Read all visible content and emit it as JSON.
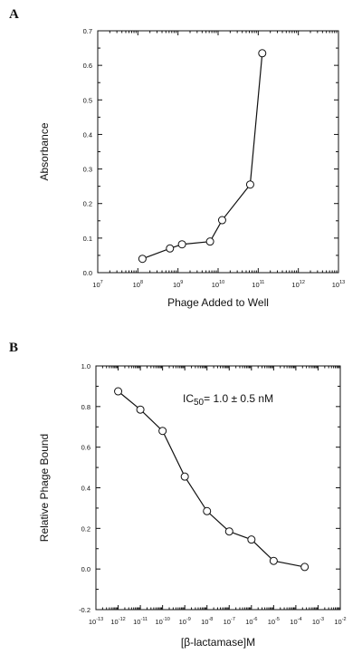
{
  "chart_data": [
    {
      "panel_label": "A",
      "type": "line",
      "xscale": "log",
      "xlabel": "Phage Added to Well",
      "ylabel": "Absorbance",
      "xlim": [
        10000000.0,
        10000000000000.0
      ],
      "ylim": [
        0,
        0.7
      ],
      "x_ticks": [
        {
          "base": "10",
          "exp": "7",
          "v": 7
        },
        {
          "base": "10",
          "exp": "8",
          "v": 8
        },
        {
          "base": "10",
          "exp": "9",
          "v": 9
        },
        {
          "base": "10",
          "exp": "10",
          "v": 10
        },
        {
          "base": "10",
          "exp": "11",
          "v": 11
        },
        {
          "base": "10",
          "exp": "12",
          "v": 12
        },
        {
          "base": "10",
          "exp": "13",
          "v": 13
        }
      ],
      "y_ticks": [
        "0.0",
        "0.1",
        "0.2",
        "0.3",
        "0.4",
        "0.5",
        "0.6",
        "0.7"
      ],
      "series": [
        {
          "x": [
            130000000.0,
            630000000.0,
            1260000000.0,
            6300000000.0,
            12600000000.0,
            63000000000.0,
            126000000000.0
          ],
          "y": [
            0.04,
            0.07,
            0.082,
            0.09,
            0.152,
            0.255,
            0.635
          ]
        }
      ]
    },
    {
      "panel_label": "B",
      "type": "line",
      "xscale": "log",
      "xlabel": "[β-lactamase]M",
      "ylabel": "Relative Phage Bound",
      "xlim": [
        1e-13,
        0.01
      ],
      "ylim": [
        -0.2,
        1.0
      ],
      "x_ticks": [
        {
          "base": "10",
          "exp": "-13",
          "v": -13
        },
        {
          "base": "10",
          "exp": "-12",
          "v": -12
        },
        {
          "base": "10",
          "exp": "-11",
          "v": -11
        },
        {
          "base": "10",
          "exp": "-10",
          "v": -10
        },
        {
          "base": "10",
          "exp": "-9",
          "v": -9
        },
        {
          "base": "10",
          "exp": "-8",
          "v": -8
        },
        {
          "base": "10",
          "exp": "-7",
          "v": -7
        },
        {
          "base": "10",
          "exp": "-6",
          "v": -6
        },
        {
          "base": "10",
          "exp": "-5",
          "v": -5
        },
        {
          "base": "10",
          "exp": "-4",
          "v": -4
        },
        {
          "base": "10",
          "exp": "-3",
          "v": -3
        },
        {
          "base": "10",
          "exp": "-2",
          "v": -2
        }
      ],
      "y_ticks": [
        "-0.2",
        "0.0",
        "0.2",
        "0.4",
        "0.6",
        "0.8",
        "1.0"
      ],
      "annotation": {
        "prefix": "IC",
        "subscript": "50",
        "suffix": "= 1.0 ± 0.5 nM"
      },
      "series": [
        {
          "x": [
            1e-12,
            1e-11,
            1e-10,
            1e-09,
            1e-08,
            1e-07,
            1e-06,
            1e-05,
            0.00025
          ],
          "y": [
            0.875,
            0.785,
            0.68,
            0.455,
            0.285,
            0.185,
            0.145,
            0.04,
            0.01
          ]
        }
      ]
    }
  ]
}
